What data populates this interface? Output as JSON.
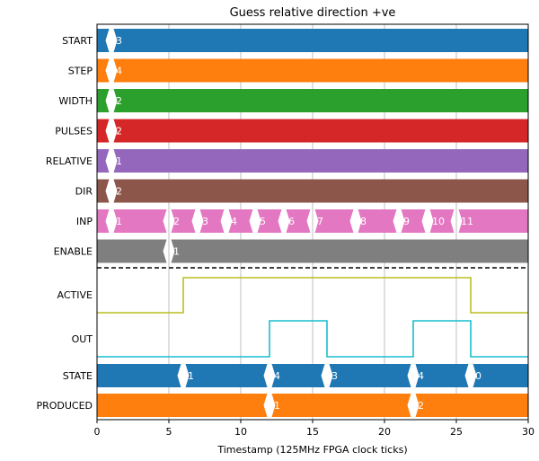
{
  "chart_data": {
    "type": "timing",
    "title": "Guess relative direction +ve",
    "xlabel": "Timestamp (125MHz FPGA clock ticks)",
    "xlim": [
      0,
      30
    ],
    "x_ticks": [
      0,
      5,
      10,
      15,
      20,
      25,
      30
    ],
    "grid": "vertical",
    "bus_signals": [
      {
        "name": "START",
        "color": "#1f77b4",
        "changes": [
          {
            "t": 1,
            "v": "3"
          }
        ]
      },
      {
        "name": "STEP",
        "color": "#ff7f0e",
        "changes": [
          {
            "t": 1,
            "v": "4"
          }
        ]
      },
      {
        "name": "WIDTH",
        "color": "#2ca02c",
        "changes": [
          {
            "t": 1,
            "v": "2"
          }
        ]
      },
      {
        "name": "PULSES",
        "color": "#d62728",
        "changes": [
          {
            "t": 1,
            "v": "2"
          }
        ]
      },
      {
        "name": "RELATIVE",
        "color": "#9467bd",
        "changes": [
          {
            "t": 1,
            "v": "1"
          }
        ]
      },
      {
        "name": "DIR",
        "color": "#8c564b",
        "changes": [
          {
            "t": 1,
            "v": "2"
          }
        ]
      },
      {
        "name": "INP",
        "color": "#e377c2",
        "changes": [
          {
            "t": 1,
            "v": "1"
          },
          {
            "t": 5,
            "v": "2"
          },
          {
            "t": 7,
            "v": "3"
          },
          {
            "t": 9,
            "v": "4"
          },
          {
            "t": 11,
            "v": "5"
          },
          {
            "t": 13,
            "v": "6"
          },
          {
            "t": 15,
            "v": "7"
          },
          {
            "t": 18,
            "v": "8"
          },
          {
            "t": 21,
            "v": "9"
          },
          {
            "t": 23,
            "v": "10"
          },
          {
            "t": 25,
            "v": "11"
          }
        ]
      },
      {
        "name": "ENABLE",
        "color": "#7f7f7f",
        "changes": [
          {
            "t": 5,
            "v": "1"
          }
        ]
      }
    ],
    "bit_signals": [
      {
        "name": "ACTIVE",
        "color": "#bcbd22",
        "initial": 0,
        "transitions": [
          {
            "t": 6,
            "v": 1
          },
          {
            "t": 26,
            "v": 0
          }
        ]
      },
      {
        "name": "OUT",
        "color": "#17becf",
        "initial": 0,
        "transitions": [
          {
            "t": 12,
            "v": 1
          },
          {
            "t": 16,
            "v": 0
          },
          {
            "t": 22,
            "v": 1
          },
          {
            "t": 26,
            "v": 0
          }
        ]
      }
    ],
    "output_bus_signals": [
      {
        "name": "STATE",
        "color": "#1f77b4",
        "changes": [
          {
            "t": 0,
            "v": ""
          },
          {
            "t": 6,
            "v": "1"
          },
          {
            "t": 12,
            "v": "4"
          },
          {
            "t": 16,
            "v": "3"
          },
          {
            "t": 22,
            "v": "4"
          },
          {
            "t": 26,
            "v": "0"
          }
        ]
      },
      {
        "name": "PRODUCED",
        "color": "#ff7f0e",
        "changes": [
          {
            "t": 0,
            "v": ""
          },
          {
            "t": 12,
            "v": "1"
          },
          {
            "t": 22,
            "v": "2"
          }
        ]
      }
    ]
  }
}
